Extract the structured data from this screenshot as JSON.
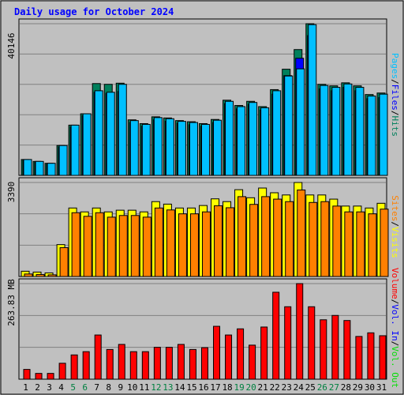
{
  "title": "Daily usage for October 2024",
  "colors": {
    "hits": "#00805c",
    "files": "#0000ff",
    "pages": "#00c0ff",
    "visits": "#ffff00",
    "sites": "#ff8000",
    "vol_in": "#ff0000",
    "vol_out": "#00e000",
    "weekend_label": "#008040",
    "weekday_label": "#000000",
    "title": "#0000ff"
  },
  "side_legends": {
    "top": [
      "Hits",
      "Files",
      "Pages"
    ],
    "middle": [
      "Visits",
      "Sites"
    ],
    "bottom": [
      "Vol. Out",
      "Vol. In",
      "Volume"
    ]
  },
  "chart_data": [
    {
      "type": "bar",
      "panel": "hits_files_pages",
      "max_label": "40146",
      "ylim": [
        0,
        40146
      ],
      "categories": [
        "1",
        "2",
        "3",
        "4",
        "5",
        "6",
        "7",
        "8",
        "9",
        "10",
        "11",
        "12",
        "13",
        "14",
        "15",
        "16",
        "17",
        "18",
        "19",
        "20",
        "21",
        "22",
        "23",
        "24",
        "25",
        "26",
        "27",
        "28",
        "29",
        "30",
        "31"
      ],
      "weekend_days": [
        "5",
        "6",
        "12",
        "13",
        "19",
        "20",
        "26",
        "27"
      ],
      "series": [
        {
          "name": "Hits",
          "values": [
            4200,
            3700,
            3200,
            7900,
            13300,
            16300,
            24300,
            24100,
            24400,
            14700,
            13700,
            15500,
            15200,
            14500,
            14200,
            13700,
            14800,
            19900,
            18500,
            19600,
            18200,
            22700,
            28100,
            33300,
            40146,
            24100,
            23700,
            24500,
            23700,
            21400,
            21800
          ]
        },
        {
          "name": "Files",
          "values": [
            4000,
            3500,
            3000,
            7500,
            12800,
            15800,
            22000,
            21700,
            22200,
            14000,
            13000,
            14700,
            14300,
            13800,
            13400,
            13000,
            14000,
            19000,
            17600,
            18800,
            17300,
            21500,
            26400,
            31000,
            37000,
            22900,
            22400,
            23300,
            22400,
            20300,
            20600
          ]
        },
        {
          "name": "Pages",
          "values": [
            4200,
            3700,
            3200,
            7900,
            13300,
            16300,
            22400,
            22000,
            24100,
            14500,
            13500,
            15300,
            15000,
            14300,
            14000,
            13500,
            14600,
            19600,
            18200,
            19300,
            17900,
            22400,
            26300,
            28200,
            39900,
            23800,
            23300,
            24200,
            23300,
            21000,
            21500
          ]
        }
      ]
    },
    {
      "type": "bar",
      "panel": "visits_sites",
      "max_label": "3390",
      "ylim": [
        0,
        3390
      ],
      "categories": [
        "1",
        "2",
        "3",
        "4",
        "5",
        "6",
        "7",
        "8",
        "9",
        "10",
        "11",
        "12",
        "13",
        "14",
        "15",
        "16",
        "17",
        "18",
        "19",
        "20",
        "21",
        "22",
        "23",
        "24",
        "25",
        "26",
        "27",
        "28",
        "29",
        "30",
        "31"
      ],
      "series": [
        {
          "name": "Visits",
          "values": [
            190,
            160,
            130,
            1150,
            2470,
            2330,
            2470,
            2330,
            2390,
            2390,
            2330,
            2700,
            2610,
            2470,
            2470,
            2560,
            2800,
            2700,
            3130,
            2840,
            3190,
            3020,
            2940,
            3390,
            2940,
            2940,
            2790,
            2540,
            2540,
            2470,
            2640
          ]
        },
        {
          "name": "Sites",
          "values": [
            90,
            70,
            60,
            1040,
            2300,
            2170,
            2300,
            2140,
            2200,
            2200,
            2140,
            2470,
            2400,
            2260,
            2260,
            2330,
            2550,
            2480,
            2880,
            2600,
            2880,
            2790,
            2700,
            3120,
            2670,
            2700,
            2540,
            2330,
            2330,
            2260,
            2430
          ]
        }
      ]
    },
    {
      "type": "bar",
      "panel": "volume",
      "max_label": "263.83 MB",
      "ylim": [
        0,
        263.83
      ],
      "categories": [
        "1",
        "2",
        "3",
        "4",
        "5",
        "6",
        "7",
        "8",
        "9",
        "10",
        "11",
        "12",
        "13",
        "14",
        "15",
        "16",
        "17",
        "18",
        "19",
        "20",
        "21",
        "22",
        "23",
        "24",
        "25",
        "26",
        "27",
        "28",
        "29",
        "30",
        "31"
      ],
      "series": [
        {
          "name": "Volume",
          "values": [
            27,
            16,
            16,
            44,
            67,
            76,
            122,
            82,
            96,
            76,
            76,
            88,
            88,
            96,
            82,
            87,
            146,
            122,
            139,
            94,
            144,
            240,
            200,
            263.83,
            200,
            164,
            176,
            162,
            118,
            128,
            120
          ]
        }
      ]
    }
  ]
}
